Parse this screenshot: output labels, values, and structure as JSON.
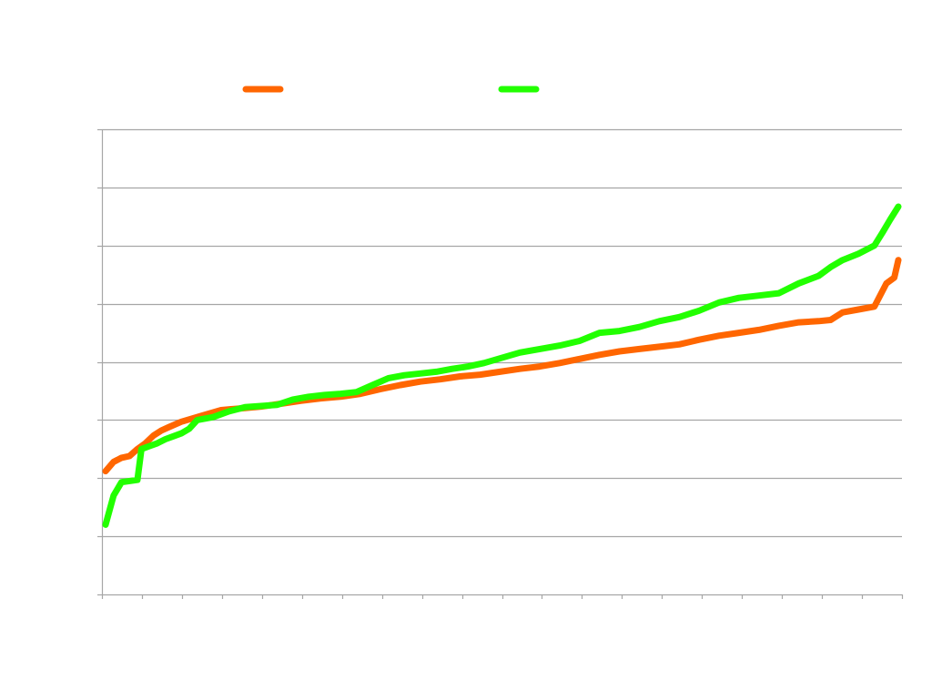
{
  "chart_data": {
    "type": "line",
    "title": "",
    "xlabel": "",
    "ylabel": "",
    "x_range": [
      1,
      200
    ],
    "ylim": [
      0,
      8
    ],
    "grid": true,
    "legend_position": "top",
    "series": [
      {
        "name": "",
        "color": "#FF6600",
        "points": [
          [
            1,
            2.12
          ],
          [
            3,
            2.28
          ],
          [
            5,
            2.35
          ],
          [
            7,
            2.38
          ],
          [
            9,
            2.5
          ],
          [
            11,
            2.6
          ],
          [
            13,
            2.73
          ],
          [
            15,
            2.82
          ],
          [
            17,
            2.88
          ],
          [
            20,
            2.97
          ],
          [
            25,
            3.07
          ],
          [
            30,
            3.17
          ],
          [
            35,
            3.2
          ],
          [
            40,
            3.23
          ],
          [
            45,
            3.28
          ],
          [
            50,
            3.33
          ],
          [
            55,
            3.37
          ],
          [
            60,
            3.4
          ],
          [
            65,
            3.45
          ],
          [
            70,
            3.53
          ],
          [
            75,
            3.6
          ],
          [
            80,
            3.66
          ],
          [
            85,
            3.7
          ],
          [
            90,
            3.75
          ],
          [
            95,
            3.78
          ],
          [
            100,
            3.83
          ],
          [
            105,
            3.88
          ],
          [
            110,
            3.92
          ],
          [
            115,
            3.98
          ],
          [
            120,
            4.05
          ],
          [
            125,
            4.12
          ],
          [
            130,
            4.18
          ],
          [
            135,
            4.22
          ],
          [
            140,
            4.26
          ],
          [
            145,
            4.3
          ],
          [
            150,
            4.38
          ],
          [
            155,
            4.45
          ],
          [
            160,
            4.5
          ],
          [
            165,
            4.55
          ],
          [
            170,
            4.62
          ],
          [
            175,
            4.68
          ],
          [
            180,
            4.7
          ],
          [
            183,
            4.72
          ],
          [
            186,
            4.85
          ],
          [
            190,
            4.9
          ],
          [
            194,
            4.95
          ],
          [
            197,
            5.35
          ],
          [
            199,
            5.45
          ],
          [
            200,
            5.75
          ]
        ]
      },
      {
        "name": "",
        "color": "#22FF00",
        "points": [
          [
            1,
            1.2
          ],
          [
            3,
            1.7
          ],
          [
            5,
            1.93
          ],
          [
            7,
            1.95
          ],
          [
            9,
            1.97
          ],
          [
            10,
            2.5
          ],
          [
            12,
            2.55
          ],
          [
            14,
            2.6
          ],
          [
            16,
            2.67
          ],
          [
            18,
            2.72
          ],
          [
            20,
            2.77
          ],
          [
            22,
            2.85
          ],
          [
            24,
            3.0
          ],
          [
            28,
            3.05
          ],
          [
            32,
            3.15
          ],
          [
            36,
            3.22
          ],
          [
            40,
            3.24
          ],
          [
            44,
            3.26
          ],
          [
            48,
            3.35
          ],
          [
            52,
            3.4
          ],
          [
            56,
            3.43
          ],
          [
            60,
            3.45
          ],
          [
            64,
            3.48
          ],
          [
            68,
            3.6
          ],
          [
            72,
            3.72
          ],
          [
            76,
            3.77
          ],
          [
            80,
            3.8
          ],
          [
            84,
            3.83
          ],
          [
            88,
            3.88
          ],
          [
            92,
            3.92
          ],
          [
            96,
            3.98
          ],
          [
            100,
            4.06
          ],
          [
            105,
            4.16
          ],
          [
            110,
            4.22
          ],
          [
            115,
            4.28
          ],
          [
            120,
            4.36
          ],
          [
            125,
            4.5
          ],
          [
            130,
            4.53
          ],
          [
            135,
            4.6
          ],
          [
            140,
            4.7
          ],
          [
            145,
            4.77
          ],
          [
            150,
            4.88
          ],
          [
            155,
            5.02
          ],
          [
            160,
            5.1
          ],
          [
            165,
            5.14
          ],
          [
            170,
            5.18
          ],
          [
            175,
            5.35
          ],
          [
            180,
            5.48
          ],
          [
            183,
            5.63
          ],
          [
            186,
            5.75
          ],
          [
            190,
            5.86
          ],
          [
            194,
            6.0
          ],
          [
            196,
            6.22
          ],
          [
            198,
            6.45
          ],
          [
            200,
            6.67
          ]
        ]
      }
    ]
  }
}
